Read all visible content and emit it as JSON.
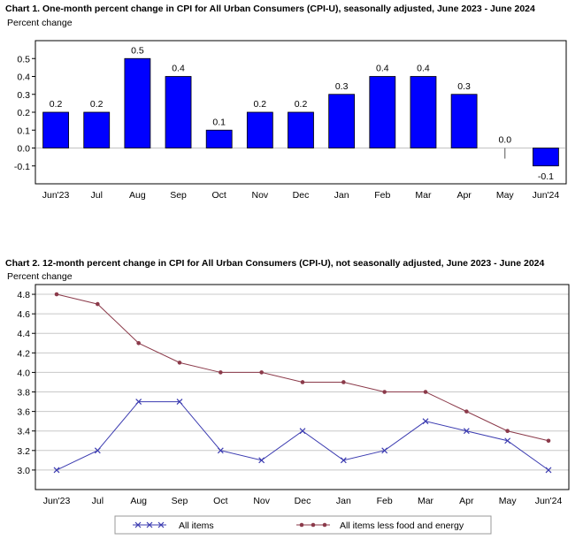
{
  "chart_data": [
    {
      "type": "bar",
      "title": "Chart 1. One-month percent change in CPI for All Urban Consumers (CPI-U), seasonally adjusted, June 2023 - June 2024",
      "ylabel": "Percent change",
      "categories": [
        "Jun'23",
        "Jul",
        "Aug",
        "Sep",
        "Oct",
        "Nov",
        "Dec",
        "Jan",
        "Feb",
        "Mar",
        "Apr",
        "May",
        "Jun'24"
      ],
      "values": [
        0.2,
        0.2,
        0.5,
        0.4,
        0.1,
        0.2,
        0.2,
        0.3,
        0.4,
        0.4,
        0.3,
        0.0,
        -0.1
      ],
      "data_labels": [
        "0.2",
        "0.2",
        "0.5",
        "0.4",
        "0.1",
        "0.2",
        "0.2",
        "0.3",
        "0.4",
        "0.4",
        "0.3",
        "0.0",
        "-0.1"
      ],
      "ylim": [
        -0.2,
        0.6
      ],
      "yticks": [
        -0.1,
        0.0,
        0.1,
        0.2,
        0.3,
        0.4,
        0.5
      ],
      "ytick_labels": [
        "-0.1",
        "0.0",
        "0.1",
        "0.2",
        "0.3",
        "0.4",
        "0.5"
      ],
      "grid": false,
      "color": "#0000ff"
    },
    {
      "type": "line",
      "title": "Chart 2. 12-month percent change in CPI for All Urban Consumers (CPI-U), not seasonally adjusted, June 2023 - June 2024",
      "ylabel": "Percent change",
      "categories": [
        "Jun'23",
        "Jul",
        "Aug",
        "Sep",
        "Oct",
        "Nov",
        "Dec",
        "Jan",
        "Feb",
        "Mar",
        "Apr",
        "May",
        "Jun'24"
      ],
      "series": [
        {
          "name": "All items",
          "values": [
            3.0,
            3.2,
            3.7,
            3.7,
            3.2,
            3.1,
            3.4,
            3.1,
            3.2,
            3.5,
            3.4,
            3.3,
            3.0
          ],
          "color": "#3b3bb0",
          "marker": "x"
        },
        {
          "name": "All items less food and energy",
          "values": [
            4.8,
            4.7,
            4.3,
            4.1,
            4.0,
            4.0,
            3.9,
            3.9,
            3.8,
            3.8,
            3.6,
            3.4,
            3.3
          ],
          "color": "#8b3a4a",
          "marker": "circle"
        }
      ],
      "ylim": [
        2.8,
        4.9
      ],
      "yticks": [
        3.0,
        3.2,
        3.4,
        3.6,
        3.8,
        4.0,
        4.2,
        4.4,
        4.6,
        4.8
      ],
      "ytick_labels": [
        "3.0",
        "3.2",
        "3.4",
        "3.6",
        "3.8",
        "4.0",
        "4.2",
        "4.4",
        "4.6",
        "4.8"
      ],
      "grid": true,
      "legend_position": "bottom"
    }
  ]
}
